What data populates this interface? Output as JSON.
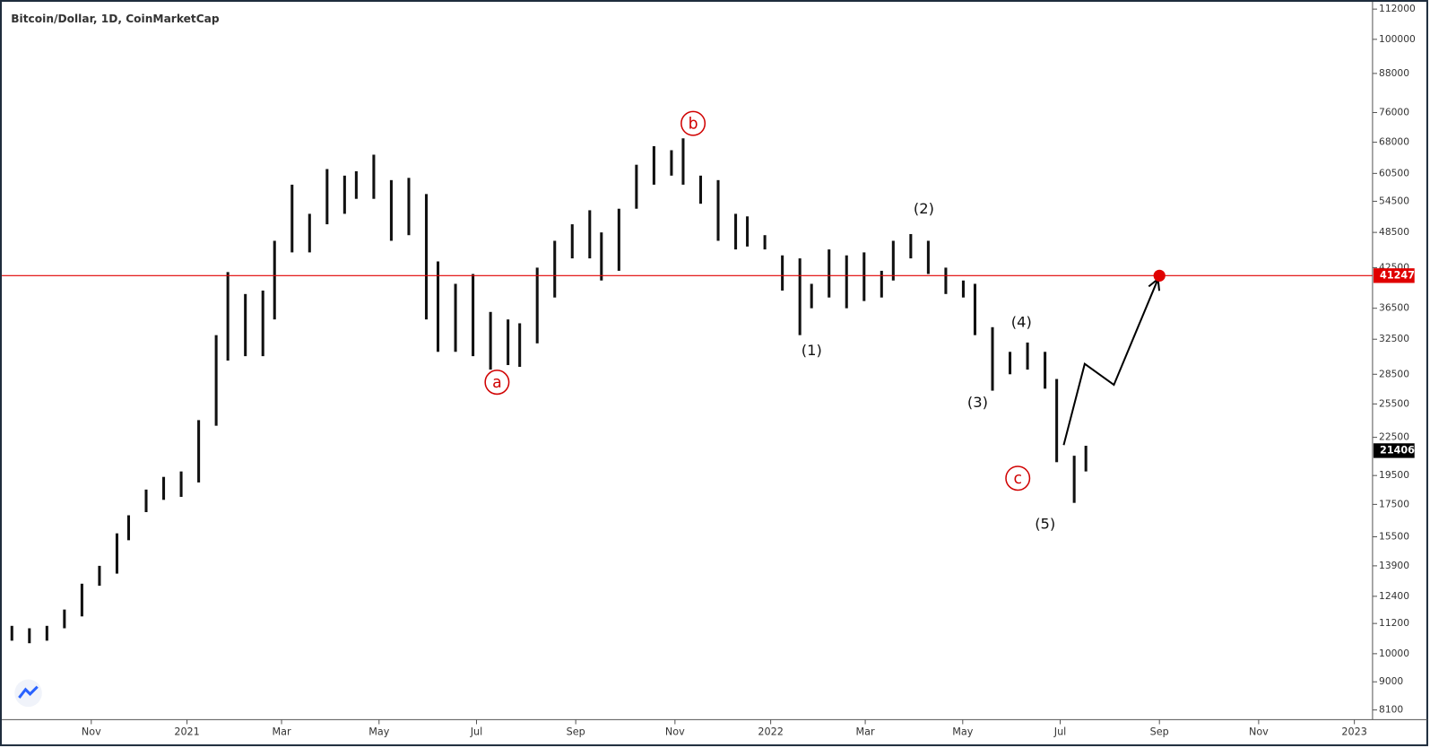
{
  "chart_data": {
    "type": "ohlc",
    "title": "Bitcoin/Dollar, 1D, CoinMarketCap",
    "log_scale": true,
    "grid": false,
    "color": "#111111",
    "xlim": [
      2020.689,
      2023.028
    ],
    "xticks": [
      {
        "value": 2020.836,
        "label": "Nov"
      },
      {
        "value": 2021,
        "label": "2021"
      },
      {
        "value": 2021.162,
        "label": "Mar"
      },
      {
        "value": 2021.329,
        "label": "May"
      },
      {
        "value": 2021.496,
        "label": "Jul"
      },
      {
        "value": 2021.666,
        "label": "Sep"
      },
      {
        "value": 2021.836,
        "label": "Nov"
      },
      {
        "value": 2022,
        "label": "2022"
      },
      {
        "value": 2022.162,
        "label": "Mar"
      },
      {
        "value": 2022.329,
        "label": "May"
      },
      {
        "value": 2022.496,
        "label": "Jul"
      },
      {
        "value": 2022.666,
        "label": "Sep"
      },
      {
        "value": 2022.836,
        "label": "Nov"
      },
      {
        "value": 2023,
        "label": "2023"
      }
    ],
    "ylim": [
      7810,
      114700
    ],
    "yticks": [
      112000,
      100000,
      88000,
      76000,
      68000,
      60500,
      54500,
      48500,
      42500,
      36500,
      32500,
      28500,
      25500,
      22500,
      19500,
      17500,
      15500,
      13900,
      12400,
      11200,
      10000,
      9000,
      8100
    ],
    "x": [
      2020.7,
      2020.73,
      2020.76,
      2020.79,
      2020.82,
      2020.85,
      2020.88,
      2020.9,
      2020.93,
      2020.96,
      2020.99,
      2021.02,
      2021.05,
      2021.07,
      2021.1,
      2021.13,
      2021.15,
      2021.18,
      2021.21,
      2021.24,
      2021.27,
      2021.29,
      2021.32,
      2021.35,
      2021.38,
      2021.41,
      2021.43,
      2021.46,
      2021.49,
      2021.52,
      2021.55,
      2021.57,
      2021.6,
      2021.63,
      2021.66,
      2021.69,
      2021.71,
      2021.74,
      2021.77,
      2021.8,
      2021.83,
      2021.85,
      2021.88,
      2021.91,
      2021.94,
      2021.96,
      2021.99,
      2022.02,
      2022.05,
      2022.07,
      2022.1,
      2022.13,
      2022.16,
      2022.19,
      2022.21,
      2022.24,
      2022.27,
      2022.3,
      2022.33,
      2022.35,
      2022.38,
      2022.41,
      2022.44,
      2022.47,
      2022.49,
      2022.52,
      2022.54
    ],
    "high": [
      11100,
      11000,
      11100,
      11800,
      13000,
      13900,
      15700,
      16800,
      18500,
      19400,
      19800,
      24000,
      33000,
      41800,
      38500,
      39000,
      47000,
      58000,
      52000,
      61500,
      60000,
      61000,
      64900,
      59000,
      59500,
      56000,
      43500,
      40000,
      41500,
      36000,
      35000,
      34500,
      42500,
      47000,
      50000,
      52700,
      48500,
      53000,
      62500,
      67000,
      66000,
      69000,
      60000,
      59000,
      52000,
      51500,
      48000,
      44500,
      44000,
      40000,
      45500,
      44500,
      45000,
      42000,
      47000,
      48200,
      47000,
      42500,
      40500,
      40000,
      34000,
      31000,
      32100,
      31000,
      28000,
      21000,
      21800
    ],
    "low": [
      10500,
      10400,
      10500,
      11000,
      11500,
      12900,
      13500,
      15300,
      17000,
      17800,
      18000,
      19000,
      23500,
      30000,
      30500,
      30500,
      35000,
      45000,
      45000,
      50000,
      52000,
      55000,
      55000,
      47000,
      48000,
      35000,
      31000,
      31000,
      30500,
      29000,
      29500,
      29300,
      32000,
      38000,
      44000,
      44000,
      40500,
      42000,
      53000,
      58000,
      60000,
      58000,
      54000,
      47000,
      45500,
      46000,
      45500,
      39000,
      33000,
      36500,
      38000,
      36500,
      37500,
      38000,
      40500,
      44000,
      41500,
      38500,
      38000,
      33000,
      26800,
      28500,
      29000,
      27000,
      20500,
      17600,
      19800
    ],
    "level": {
      "value": 41247,
      "color": "#e00000"
    },
    "last_price": 21406,
    "projection": {
      "x": [
        2022.502,
        2022.538,
        2022.588,
        2022.666
      ],
      "values": [
        21860,
        29630,
        27390,
        41247
      ]
    },
    "annotations": [
      "a",
      "b",
      "c",
      "(1)",
      "(2)",
      "(3)",
      "(4)",
      "(5)"
    ]
  }
}
